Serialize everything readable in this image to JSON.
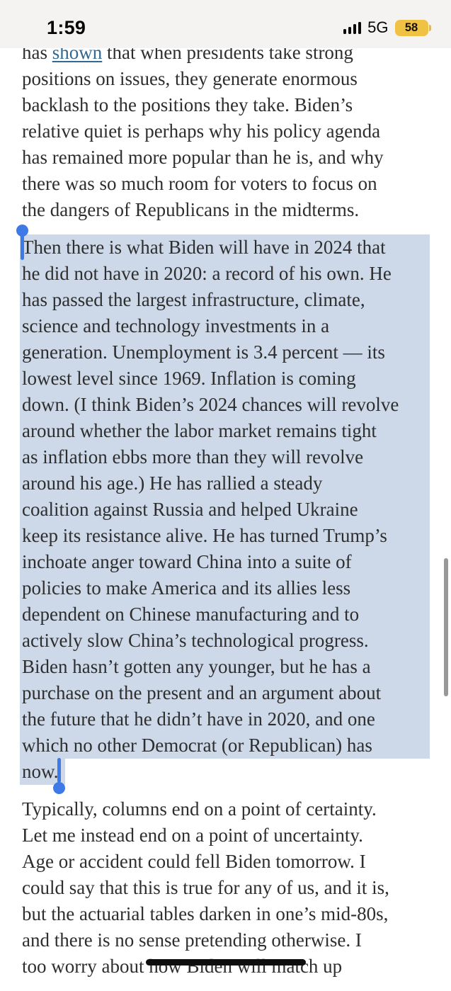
{
  "status_bar": {
    "time": "1:59",
    "network": "5G",
    "battery_percent": "58"
  },
  "colors": {
    "text": "#2e2e2e",
    "link": "#326891",
    "selection_highlight": "#cdd9e8",
    "selection_handle": "#3e79e8",
    "battery_low_power": "#f0c243"
  },
  "article": {
    "paragraphs": [
      {
        "name": "paragraph-presidents-positions",
        "selected": false,
        "lines": [
          {
            "segments": [
              {
                "text": "has "
              },
              {
                "text": "shown",
                "link": true
              },
              {
                "text": " that when presidents take strong"
              }
            ]
          },
          "positions on issues, they generate enormous",
          "backlash to the positions they take. Biden’s",
          "relative quiet is perhaps why his policy agenda",
          "has remained more popular than he is, and why",
          "there was so much room for voters to focus on",
          "the dangers of Republicans in the midterms."
        ]
      },
      {
        "name": "paragraph-biden-record",
        "selected": true,
        "partial_last_line": true,
        "lines": [
          "Then there is what Biden will have in 2024 that",
          "he did not have in 2020: a record of his own. He",
          "has passed the largest infrastructure, climate,",
          "science and technology investments in a",
          "generation. Unemployment is 3.4 percent — its",
          "lowest level since 1969. Inflation is coming",
          "down. (I think Biden’s 2024 chances will revolve",
          "around whether the labor market remains tight",
          "as inflation ebbs more than they will revolve",
          "around his age.) He has rallied a steady",
          "coalition against Russia and helped Ukraine",
          "keep its resistance alive. He has turned Trump’s",
          "inchoate anger toward China into a suite of",
          "policies to make America and its allies less",
          "dependent on Chinese manufacturing and to",
          "actively slow China’s technological progress.",
          "Biden hasn’t gotten any younger, but he has a",
          "purchase on the present and an argument about",
          "the future that he didn’t have in 2020, and one",
          "which no other Democrat (or Republican) has",
          "now."
        ]
      },
      {
        "name": "paragraph-ending-uncertainty",
        "selected": false,
        "lines": [
          "Typically, columns end on a point of certainty.",
          "Let me instead end on a point of uncertainty.",
          "Age or accident could fell Biden tomorrow. I",
          "could say that this is true for any of us, and it is,",
          "but the actuarial tables darken in one’s mid-80s,",
          "and there is no sense pretending otherwise. I",
          "too worry about how Biden will match up"
        ]
      }
    ]
  }
}
